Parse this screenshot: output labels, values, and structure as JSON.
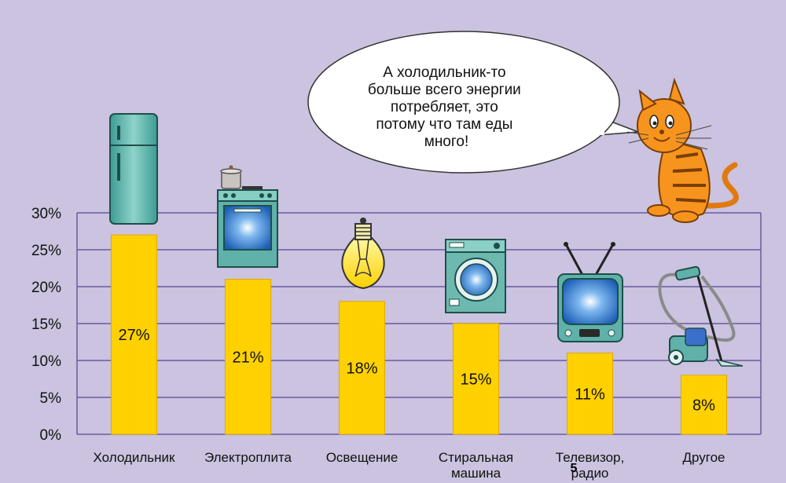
{
  "speech_bubble": {
    "lines": [
      "А холодильник-то",
      "больше всего энергии",
      "потребляет, это",
      "потому что там еды",
      "много!"
    ]
  },
  "page_number": "5",
  "colors": {
    "background": "#cbc3df",
    "bar": "#ffd100",
    "bar_edge": "#e0a800",
    "gridline": "#6b5aa0",
    "bubble_fill": "#ffffff",
    "cat": "#f7941d"
  },
  "chart_data": {
    "type": "bar",
    "categories": [
      [
        "Холодильник"
      ],
      [
        "Электроплита"
      ],
      [
        "Освещение"
      ],
      [
        "Стиральная",
        "машина"
      ],
      [
        "Телевизор,",
        "радио"
      ],
      [
        "Другое"
      ]
    ],
    "values": [
      27,
      21,
      18,
      15,
      11,
      8
    ],
    "value_labels": [
      "27%",
      "21%",
      "18%",
      "15%",
      "11%",
      "8%"
    ],
    "yticks": [
      "0%",
      "5%",
      "10%",
      "15%",
      "20%",
      "25%",
      "30%"
    ],
    "ylim": [
      0,
      30
    ],
    "icons": [
      "refrigerator-icon",
      "electric-stove-icon",
      "light-bulb-icon",
      "washing-machine-icon",
      "tv-icon",
      "vacuum-cleaner-icon"
    ],
    "grid": true
  }
}
